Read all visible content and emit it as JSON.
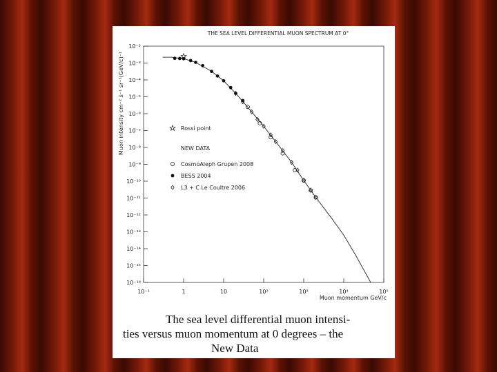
{
  "chart_data": {
    "type": "line",
    "title": "THE SEA LEVEL DIFFERENTIAL MUON SPECTRUM AT 0°",
    "x_label": "Muon momentum GeV/c",
    "y_label": "Muon intensity cm⁻² s⁻¹ sr⁻¹(GeV/c)⁻¹",
    "log_x": true,
    "log_y": true,
    "xlim": [
      0.1,
      100000
    ],
    "xticks": [
      {
        "value": 0.1,
        "label": "10⁻¹"
      },
      1,
      10,
      {
        "value": 100,
        "label": "10²"
      },
      {
        "value": 1000,
        "label": "10³"
      },
      {
        "value": 10000,
        "label": "10⁴"
      },
      {
        "value": 100000,
        "label": "10⁵"
      }
    ],
    "ylim": [
      1e-16,
      0.01
    ],
    "yticks": [
      {
        "value": 0.01,
        "label": "10⁻²"
      },
      {
        "value": 0.001,
        "label": "10⁻³"
      },
      {
        "value": 0.0001,
        "label": "10⁻⁴"
      },
      {
        "value": 1e-05,
        "label": "10⁻⁵"
      },
      {
        "value": 1e-06,
        "label": "10⁻⁶"
      },
      {
        "value": 1e-07,
        "label": "10⁻⁷"
      },
      {
        "value": 1e-08,
        "label": "10⁻⁸"
      },
      {
        "value": 1e-09,
        "label": "10⁻⁹"
      },
      {
        "value": 1e-10,
        "label": "10⁻¹⁰"
      },
      {
        "value": 1e-11,
        "label": "10⁻¹¹"
      },
      {
        "value": 1e-12,
        "label": "10⁻¹²"
      },
      {
        "value": 1e-13,
        "label": "10⁻¹³"
      },
      {
        "value": 1e-14,
        "label": "10⁻¹⁴"
      },
      {
        "value": 1e-15,
        "label": "10⁻¹⁵"
      },
      {
        "value": 1e-16,
        "label": "10⁻¹⁶"
      }
    ],
    "legend_heading": "NEW DATA",
    "series": [
      {
        "marker": "line",
        "color": "#222222",
        "x": [
          0.3,
          0.5,
          1,
          2,
          5,
          10,
          20,
          50,
          100,
          200,
          500,
          1000,
          2000,
          5000,
          10000,
          20000,
          47000
        ],
        "values": [
          0.0022,
          0.0022,
          0.0018,
          0.0011,
          0.00032,
          8.9e-05,
          1.6e-05,
          1.3e-06,
          1.8e-07,
          2.2e-08,
          1.3e-09,
          1.1e-10,
          1.1e-11,
          6.3e-13,
          6.3e-14,
          4e-15,
          1e-16
        ]
      },
      {
        "name": "Rossi point",
        "marker": "star",
        "color": "#222222",
        "x": [
          1
        ],
        "values": [
          0.0025
        ]
      },
      {
        "name": "CosmoAleph Grupen 2008",
        "marker": "circle",
        "color": "#222222",
        "x": [
          40,
          80,
          150,
          300,
          600,
          1000,
          1500,
          2000
        ],
        "values": [
          2.5e-06,
          2.7e-07,
          4e-08,
          4.5e-09,
          4.5e-10,
          1.1e-10,
          2.8e-11,
          1.1e-11
        ]
      },
      {
        "name": "BESS 2004",
        "marker": "dot",
        "color": "#111111",
        "x": [
          0.6,
          0.8,
          1,
          1.5,
          2,
          3,
          5,
          7,
          10,
          15,
          20,
          30
        ],
        "values": [
          0.0019,
          0.00185,
          0.0018,
          0.0014,
          0.0011,
          0.0007,
          0.00032,
          0.00017,
          8.9e-05,
          3.5e-05,
          1.6e-05,
          6e-06
        ]
      },
      {
        "name": "L3 + C Le Coultre 2006",
        "marker": "diamond",
        "color": "#222222",
        "x": [
          20,
          30,
          50,
          70,
          100,
          150,
          200,
          300,
          500,
          700,
          1000,
          1500,
          2000
        ],
        "values": [
          1.6e-05,
          5e-06,
          1.3e-06,
          4.5e-07,
          1.8e-07,
          5.5e-08,
          2.2e-08,
          6.5e-09,
          1.3e-09,
          4.5e-10,
          1.1e-10,
          3e-11,
          1.1e-11
        ]
      }
    ]
  },
  "caption": [
    "The sea level differential muon intensi-",
    "ties versus muon momentum at 0 degrees – the",
    "New Data"
  ]
}
